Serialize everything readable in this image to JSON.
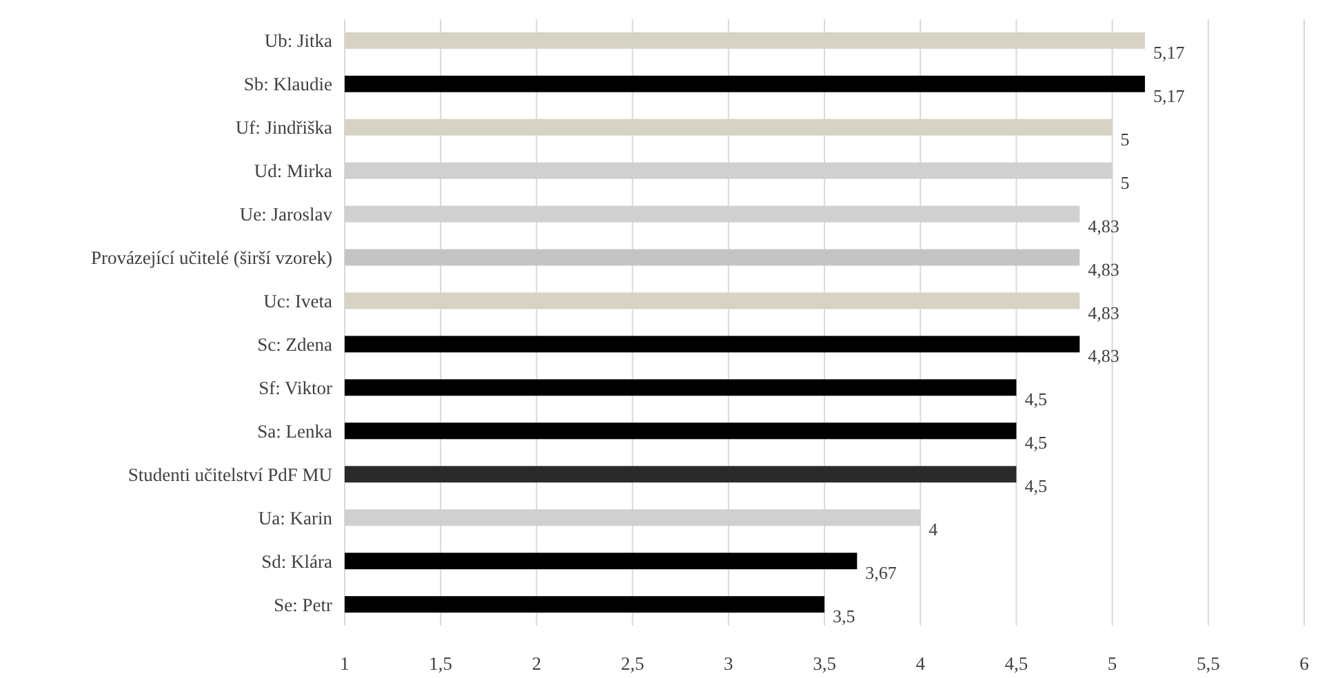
{
  "chart_data": {
    "type": "bar",
    "orientation": "horizontal",
    "categories": [
      "Ub: Jitka",
      "Sb: Klaudie",
      "Uf: Jindřiška",
      "Ud: Mirka",
      "Ue: Jaroslav",
      "Provázející učitelé (širší vzorek)",
      "Uc: Iveta",
      "Sc: Zdena",
      "Sf: Viktor",
      "Sa: Lenka",
      "Studenti učitelství PdF MU",
      "Ua: Karin",
      "Sd: Klára",
      "Se: Petr"
    ],
    "values": [
      5.17,
      5.17,
      5,
      5,
      4.83,
      4.83,
      4.83,
      4.83,
      4.5,
      4.5,
      4.5,
      4,
      3.67,
      3.5
    ],
    "colors": [
      "#d6d3c4",
      "#000000",
      "#d6d3c4",
      "#d0d0d0",
      "#d0d0d0",
      "#c4c4c4",
      "#d6d3c4",
      "#000000",
      "#000000",
      "#000000",
      "#2a2a2a",
      "#d0d0d0",
      "#000000",
      "#000000"
    ],
    "value_labels": [
      "5,17",
      "5,17",
      "5",
      "5",
      "4,83",
      "4,83",
      "4,83",
      "4,83",
      "4,5",
      "4,5",
      "4,5",
      "4",
      "3,67",
      "3,5"
    ],
    "xlim": [
      1,
      6
    ],
    "xticks": [
      1,
      {
        "value": 1.5,
        "label": "1,5"
      },
      2,
      {
        "value": 2.5,
        "label": "2,5"
      },
      3,
      {
        "value": 3.5,
        "label": "3,5"
      },
      4,
      {
        "value": 4.5,
        "label": "4,5"
      },
      5,
      {
        "value": 5.5,
        "label": "5,5"
      },
      6
    ],
    "grid": "x"
  }
}
